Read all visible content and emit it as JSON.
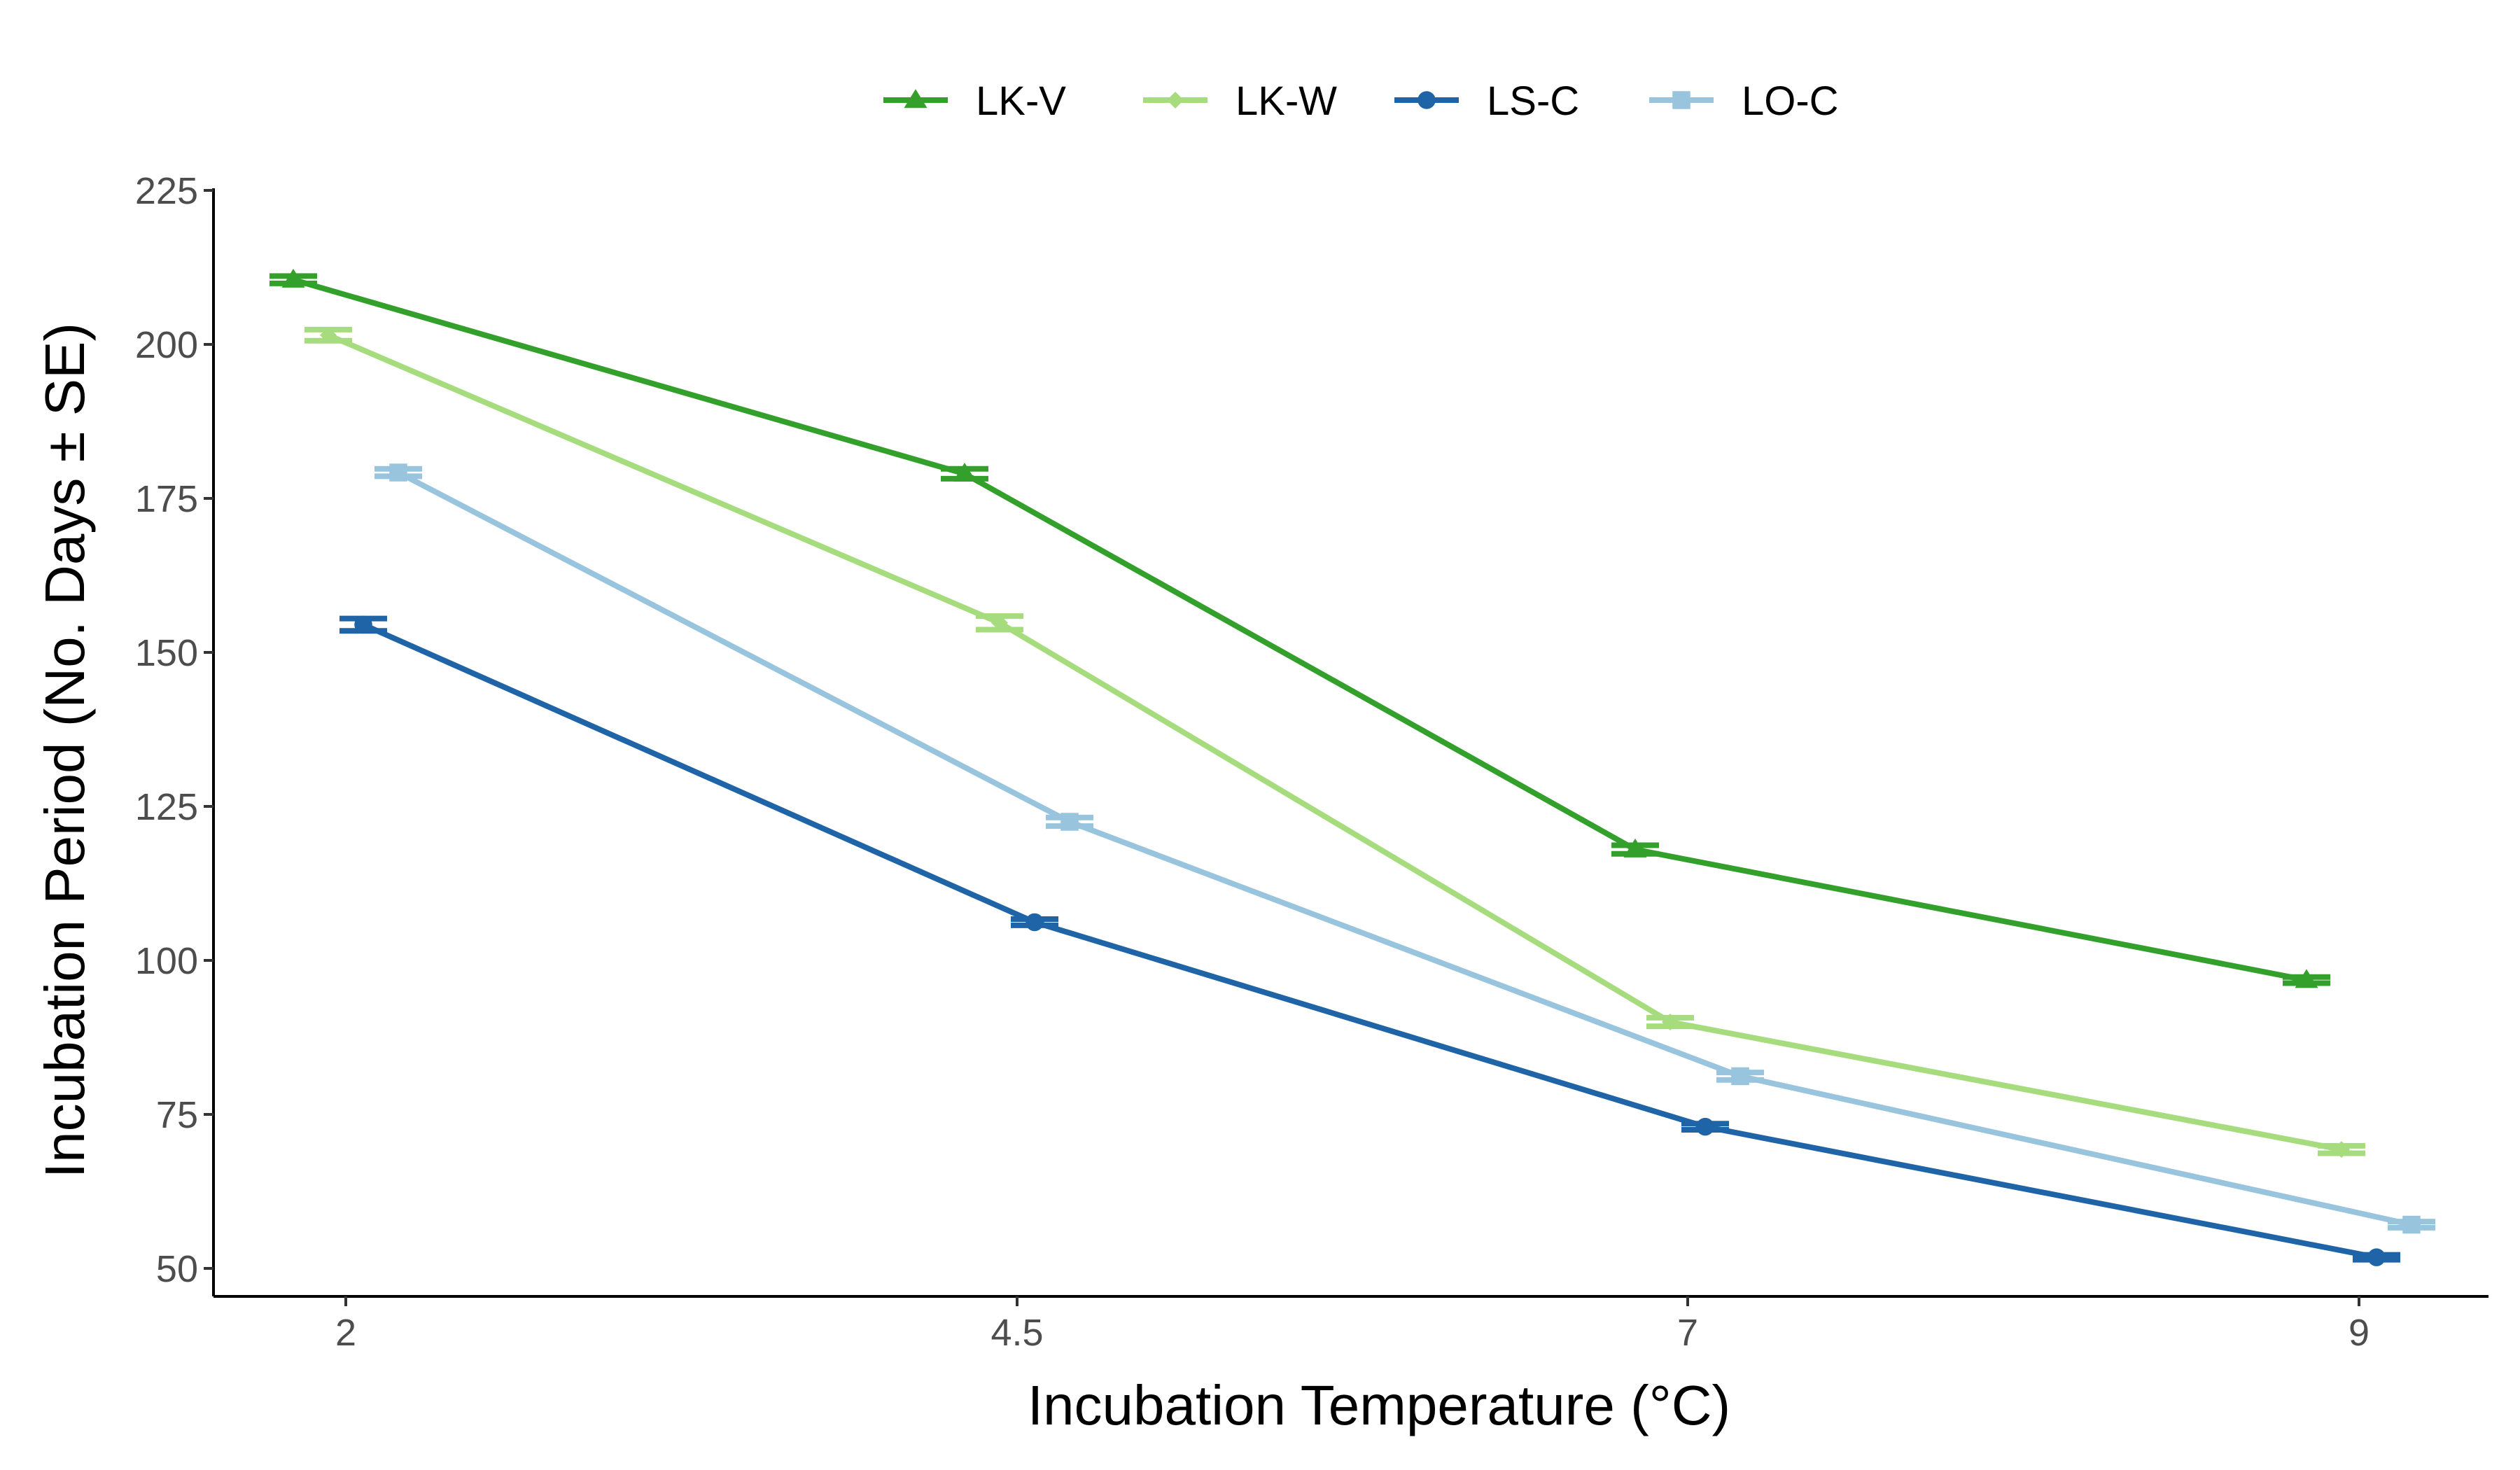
{
  "chart_data": {
    "type": "line",
    "xlabel": "Incubation Temperature (°C)",
    "ylabel": "Incubation Period (No. Days ± SE)",
    "x_ticks": [
      "2",
      "4.5",
      "7",
      "9"
    ],
    "x_tick_values": [
      2,
      4.5,
      7,
      9
    ],
    "y_ticks": [
      "50",
      "75",
      "100",
      "125",
      "150",
      "175",
      "200",
      "225"
    ],
    "y_tick_values": [
      50,
      75,
      100,
      125,
      150,
      175,
      200,
      225
    ],
    "ylim": [
      45,
      226
    ],
    "grid": false,
    "legend_position": "top",
    "series": [
      {
        "name": "LK-V",
        "color": "#33a02c",
        "marker": "triangle",
        "x": [
          2,
          4.5,
          7,
          9
        ],
        "y": [
          210.5,
          179,
          118,
          96.8
        ],
        "se": [
          0.6,
          0.8,
          0.7,
          0.5
        ]
      },
      {
        "name": "LK-W",
        "color": "#a6dc7e",
        "marker": "diamond",
        "x": [
          2,
          4.5,
          7,
          9
        ],
        "y": [
          201.5,
          154.8,
          90,
          69.3
        ],
        "se": [
          0.9,
          1.1,
          0.7,
          0.6
        ]
      },
      {
        "name": "LS-C",
        "color": "#1f64a6",
        "marker": "circle",
        "x": [
          2,
          4.5,
          7,
          9
        ],
        "y": [
          154.5,
          106.2,
          73,
          51.8
        ],
        "se": [
          1.0,
          0.5,
          0.5,
          0.4
        ]
      },
      {
        "name": "LO-C",
        "color": "#99c4dd",
        "marker": "square",
        "x": [
          2,
          4.5,
          7,
          9
        ],
        "y": [
          179.2,
          122.5,
          81.2,
          57.1
        ],
        "se": [
          0.6,
          0.7,
          0.6,
          0.5
        ]
      }
    ]
  }
}
